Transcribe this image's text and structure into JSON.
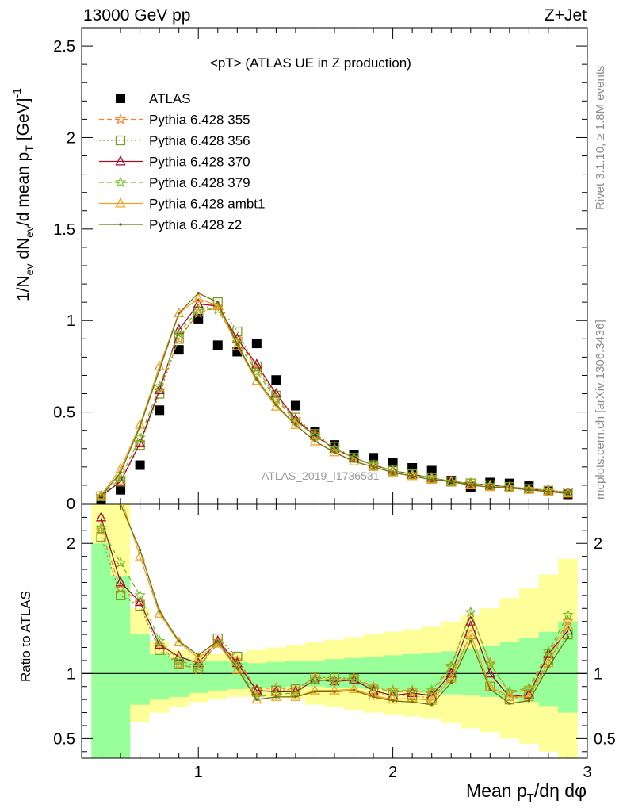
{
  "header": {
    "left": "13000 GeV pp",
    "right": "Z+Jet"
  },
  "plot_title": "<pT> (ATLAS UE in Z production)",
  "side_text": {
    "rivet": "Rivet 3.1.10, ≥ 1.8M events",
    "mcplots": "mcplots.cern.ch [arXiv:1306.3436]"
  },
  "watermark": "ATLAS_2019_I1736531",
  "colors": {
    "ATLAS": "#000000",
    "p355": "#ff7f2a",
    "p356": "#7f9f1f",
    "p370": "#9f0f2f",
    "p379": "#6fbf1f",
    "ambt1": "#f0a020",
    "z2": "#707010",
    "band_inner": "#99ff99",
    "band_outer": "#ffff99"
  },
  "chart_data": [
    {
      "type": "scatter",
      "panel": "main",
      "ylabel": "1/N_ev dN_ev/d mean p_T [GeV]^-1",
      "xlim": [
        0.4,
        3.0
      ],
      "ylim": [
        0,
        2.6
      ],
      "y_ticks": [
        "0",
        "0.5",
        "1",
        "1.5",
        "2",
        "2.5"
      ],
      "x": [
        0.5,
        0.6,
        0.7,
        0.8,
        0.9,
        1.0,
        1.1,
        1.2,
        1.3,
        1.4,
        1.5,
        1.6,
        1.7,
        1.8,
        1.9,
        2.0,
        2.1,
        2.2,
        2.3,
        2.4,
        2.5,
        2.6,
        2.7,
        2.8,
        2.9
      ],
      "series": [
        {
          "name": "ATLAS",
          "key": "ATLAS",
          "marker": "square",
          "values": [
            0.02,
            0.075,
            0.21,
            0.51,
            0.84,
            1.01,
            0.865,
            0.83,
            0.875,
            0.675,
            0.535,
            0.39,
            0.32,
            0.265,
            0.25,
            0.225,
            0.195,
            0.18,
            0.125,
            0.09,
            0.115,
            0.11,
            0.095,
            0.07,
            0.05
          ]
        },
        {
          "name": "Pythia 6.428 355",
          "key": "p355",
          "marker": "star",
          "dash": "6,4",
          "values": [
            0.04,
            0.12,
            0.33,
            0.62,
            0.9,
            1.04,
            1.08,
            0.9,
            0.74,
            0.58,
            0.46,
            0.38,
            0.3,
            0.25,
            0.21,
            0.18,
            0.16,
            0.14,
            0.12,
            0.11,
            0.1,
            0.09,
            0.08,
            0.075,
            0.06
          ]
        },
        {
          "name": "Pythia 6.428 356",
          "key": "p356",
          "marker": "square-open",
          "dash": "2,3",
          "values": [
            0.04,
            0.12,
            0.32,
            0.6,
            0.9,
            1.05,
            1.1,
            0.94,
            0.75,
            0.59,
            0.47,
            0.38,
            0.31,
            0.25,
            0.21,
            0.18,
            0.16,
            0.14,
            0.12,
            0.11,
            0.1,
            0.09,
            0.08,
            0.07,
            0.06
          ]
        },
        {
          "name": "Pythia 6.428 370",
          "key": "p370",
          "marker": "triangle-open",
          "dash": "",
          "values": [
            0.04,
            0.12,
            0.33,
            0.62,
            0.95,
            1.09,
            1.08,
            0.9,
            0.76,
            0.6,
            0.46,
            0.37,
            0.3,
            0.25,
            0.21,
            0.18,
            0.16,
            0.14,
            0.12,
            0.11,
            0.1,
            0.09,
            0.08,
            0.07,
            0.06
          ]
        },
        {
          "name": "Pythia 6.428 379",
          "key": "p379",
          "marker": "star",
          "dash": "6,4",
          "values": [
            0.04,
            0.14,
            0.36,
            0.64,
            0.93,
            1.06,
            1.06,
            0.88,
            0.72,
            0.57,
            0.45,
            0.37,
            0.3,
            0.25,
            0.21,
            0.18,
            0.16,
            0.14,
            0.12,
            0.11,
            0.1,
            0.09,
            0.08,
            0.07,
            0.06
          ]
        },
        {
          "name": "Pythia 6.428 ambt1",
          "key": "ambt1",
          "marker": "triangle-open",
          "dash": "",
          "values": [
            0.045,
            0.19,
            0.43,
            0.75,
            1.04,
            1.12,
            1.08,
            0.86,
            0.67,
            0.53,
            0.43,
            0.34,
            0.28,
            0.23,
            0.2,
            0.17,
            0.15,
            0.13,
            0.12,
            0.1,
            0.09,
            0.085,
            0.075,
            0.065,
            0.055
          ]
        },
        {
          "name": "Pythia 6.428 z2",
          "key": "z2",
          "marker": "dot",
          "dash": "",
          "values": [
            0.04,
            0.17,
            0.42,
            0.73,
            1.04,
            1.15,
            1.1,
            0.87,
            0.68,
            0.54,
            0.43,
            0.34,
            0.28,
            0.23,
            0.2,
            0.17,
            0.15,
            0.13,
            0.12,
            0.1,
            0.09,
            0.085,
            0.075,
            0.065,
            0.055
          ]
        }
      ]
    },
    {
      "type": "line",
      "panel": "ratio",
      "ylabel": "Ratio to ATLAS",
      "xlabel": "Mean p_T/dη dφ",
      "xlim": [
        0.4,
        3.0
      ],
      "ylim": [
        0.35,
        2.3
      ],
      "x_ticks": [
        "1",
        "2",
        "3"
      ],
      "y_ticks": [
        "0.5",
        "1",
        "2"
      ],
      "x": [
        0.5,
        0.6,
        0.7,
        0.8,
        0.9,
        1.0,
        1.1,
        1.2,
        1.3,
        1.4,
        1.5,
        1.6,
        1.7,
        1.8,
        1.9,
        2.0,
        2.1,
        2.2,
        2.3,
        2.4,
        2.5,
        2.6,
        2.7,
        2.8,
        2.9
      ],
      "band_inner": {
        "lo": [
          0.35,
          0.35,
          0.76,
          0.8,
          0.82,
          0.85,
          0.87,
          0.88,
          0.89,
          0.89,
          0.9,
          0.9,
          0.89,
          0.89,
          0.88,
          0.87,
          0.86,
          0.85,
          0.84,
          0.83,
          0.82,
          0.8,
          0.78,
          0.75,
          0.7
        ],
        "hi": [
          2.0,
          1.75,
          1.3,
          1.15,
          1.12,
          1.1,
          1.1,
          1.09,
          1.08,
          1.09,
          1.1,
          1.1,
          1.11,
          1.12,
          1.13,
          1.14,
          1.15,
          1.16,
          1.17,
          1.19,
          1.21,
          1.24,
          1.27,
          1.32,
          1.4
        ]
      },
      "band_outer": {
        "lo": [
          0.35,
          0.4,
          0.63,
          0.7,
          0.74,
          0.78,
          0.8,
          0.82,
          0.82,
          0.82,
          0.8,
          0.76,
          0.74,
          0.72,
          0.7,
          0.68,
          0.67,
          0.65,
          0.62,
          0.58,
          0.55,
          0.5,
          0.46,
          0.4,
          0.35
        ],
        "hi": [
          2.3,
          2.3,
          1.5,
          1.25,
          1.18,
          1.16,
          1.15,
          1.16,
          1.18,
          1.2,
          1.22,
          1.24,
          1.26,
          1.28,
          1.3,
          1.32,
          1.34,
          1.36,
          1.4,
          1.45,
          1.5,
          1.58,
          1.66,
          1.76,
          1.88
        ]
      },
      "series": [
        {
          "name": "Pythia 6.428 355",
          "key": "p355",
          "marker": "star",
          "dash": "6,4",
          "values": [
            2.1,
            1.65,
            1.55,
            1.22,
            1.07,
            1.03,
            1.25,
            1.1,
            0.88,
            0.89,
            0.88,
            0.97,
            0.95,
            0.97,
            0.9,
            0.87,
            0.87,
            0.85,
            1.05,
            1.47,
            1.08,
            0.85,
            0.88,
            1.15,
            1.4
          ]
        },
        {
          "name": "Pythia 6.428 356",
          "key": "p356",
          "marker": "square-open",
          "dash": "2,3",
          "values": [
            2.05,
            1.6,
            1.52,
            1.18,
            1.07,
            1.04,
            1.27,
            1.13,
            0.86,
            0.87,
            0.88,
            0.97,
            0.97,
            0.96,
            0.86,
            0.83,
            0.83,
            0.81,
            0.98,
            1.3,
            0.9,
            0.8,
            0.84,
            1.1,
            1.3
          ]
        },
        {
          "name": "Pythia 6.428 370",
          "key": "p370",
          "marker": "triangle-open",
          "dash": "",
          "values": [
            2.2,
            1.7,
            1.55,
            1.22,
            1.13,
            1.08,
            1.25,
            1.08,
            0.87,
            0.86,
            0.86,
            0.95,
            0.94,
            0.95,
            0.87,
            0.83,
            0.85,
            0.83,
            1.0,
            1.4,
            1.0,
            0.82,
            0.84,
            1.15,
            1.33
          ]
        },
        {
          "name": "Pythia 6.428 379",
          "key": "p379",
          "marker": "star",
          "dash": "6,4",
          "values": [
            2.12,
            1.85,
            1.6,
            1.25,
            1.1,
            1.05,
            1.23,
            1.06,
            0.82,
            0.84,
            0.85,
            0.95,
            0.94,
            0.96,
            0.89,
            0.86,
            0.86,
            0.87,
            1.06,
            1.47,
            1.07,
            0.86,
            0.89,
            1.17,
            1.45
          ]
        },
        {
          "name": "Pythia 6.428 ambt1",
          "key": "ambt1",
          "marker": "triangle-open",
          "dash": "",
          "values": [
            2.35,
            2.35,
            1.9,
            1.46,
            1.24,
            1.12,
            1.23,
            1.03,
            0.8,
            0.82,
            0.82,
            0.87,
            0.87,
            0.88,
            0.83,
            0.8,
            0.81,
            0.79,
            0.96,
            1.3,
            0.9,
            0.82,
            0.82,
            1.08,
            1.37
          ]
        },
        {
          "name": "Pythia 6.428 z2",
          "key": "z2",
          "marker": "dot",
          "dash": "",
          "values": [
            2.35,
            2.3,
            1.95,
            1.48,
            1.25,
            1.14,
            1.25,
            1.04,
            0.8,
            0.82,
            0.82,
            0.86,
            0.86,
            0.87,
            0.82,
            0.79,
            0.78,
            0.76,
            0.93,
            1.25,
            0.88,
            0.77,
            0.79,
            1.05,
            1.28
          ]
        }
      ]
    }
  ]
}
